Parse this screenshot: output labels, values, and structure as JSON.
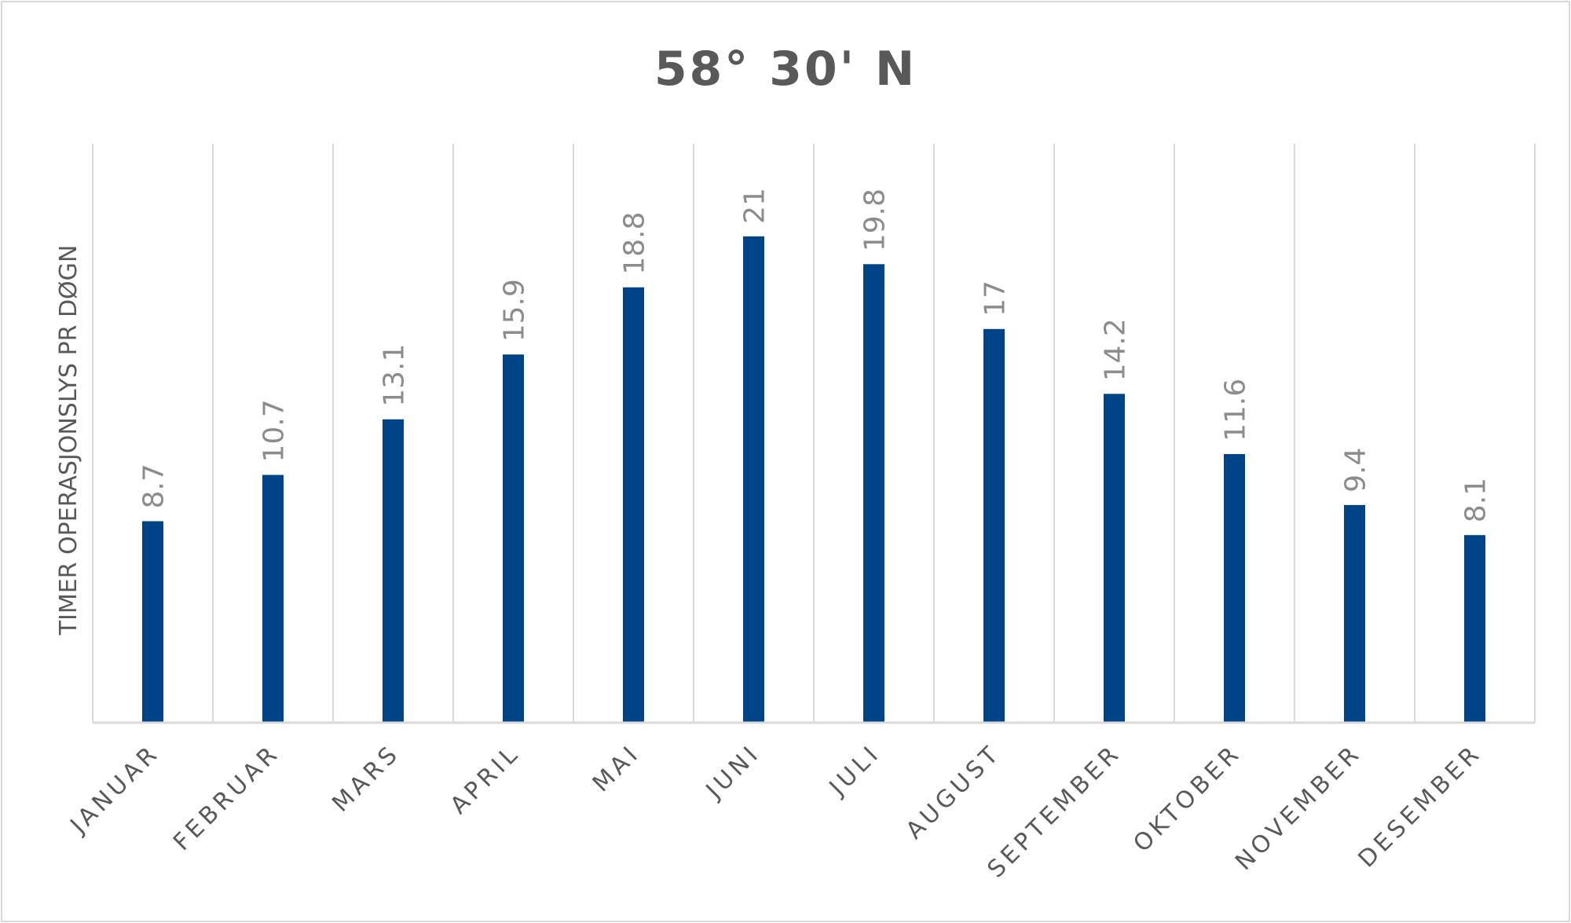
{
  "chart_data": {
    "type": "bar",
    "title": "58° 30' N",
    "xlabel": "",
    "ylabel": "TIMER OPERASJONSLYS PR DØGN",
    "categories": [
      "JANUAR",
      "FEBRUAR",
      "MARS",
      "APRIL",
      "MAI",
      "JUNI",
      "JULI",
      "AUGUST",
      "SEPTEMBER",
      "OKTOBER",
      "NOVEMBER",
      "DESEMBER"
    ],
    "values": [
      8.7,
      10.7,
      13.1,
      15.9,
      18.8,
      21,
      19.8,
      17,
      14.2,
      11.6,
      9.4,
      8.1
    ],
    "data_labels": [
      "8.7",
      "10.7",
      "13.1",
      "15.9",
      "18.8",
      "21",
      "19.8",
      "17",
      "14.2",
      "11.6",
      "9.4",
      "8.1"
    ],
    "ylim": [
      0,
      25
    ],
    "grid": "vertical",
    "legend": "none",
    "bar_color": "#004488"
  }
}
